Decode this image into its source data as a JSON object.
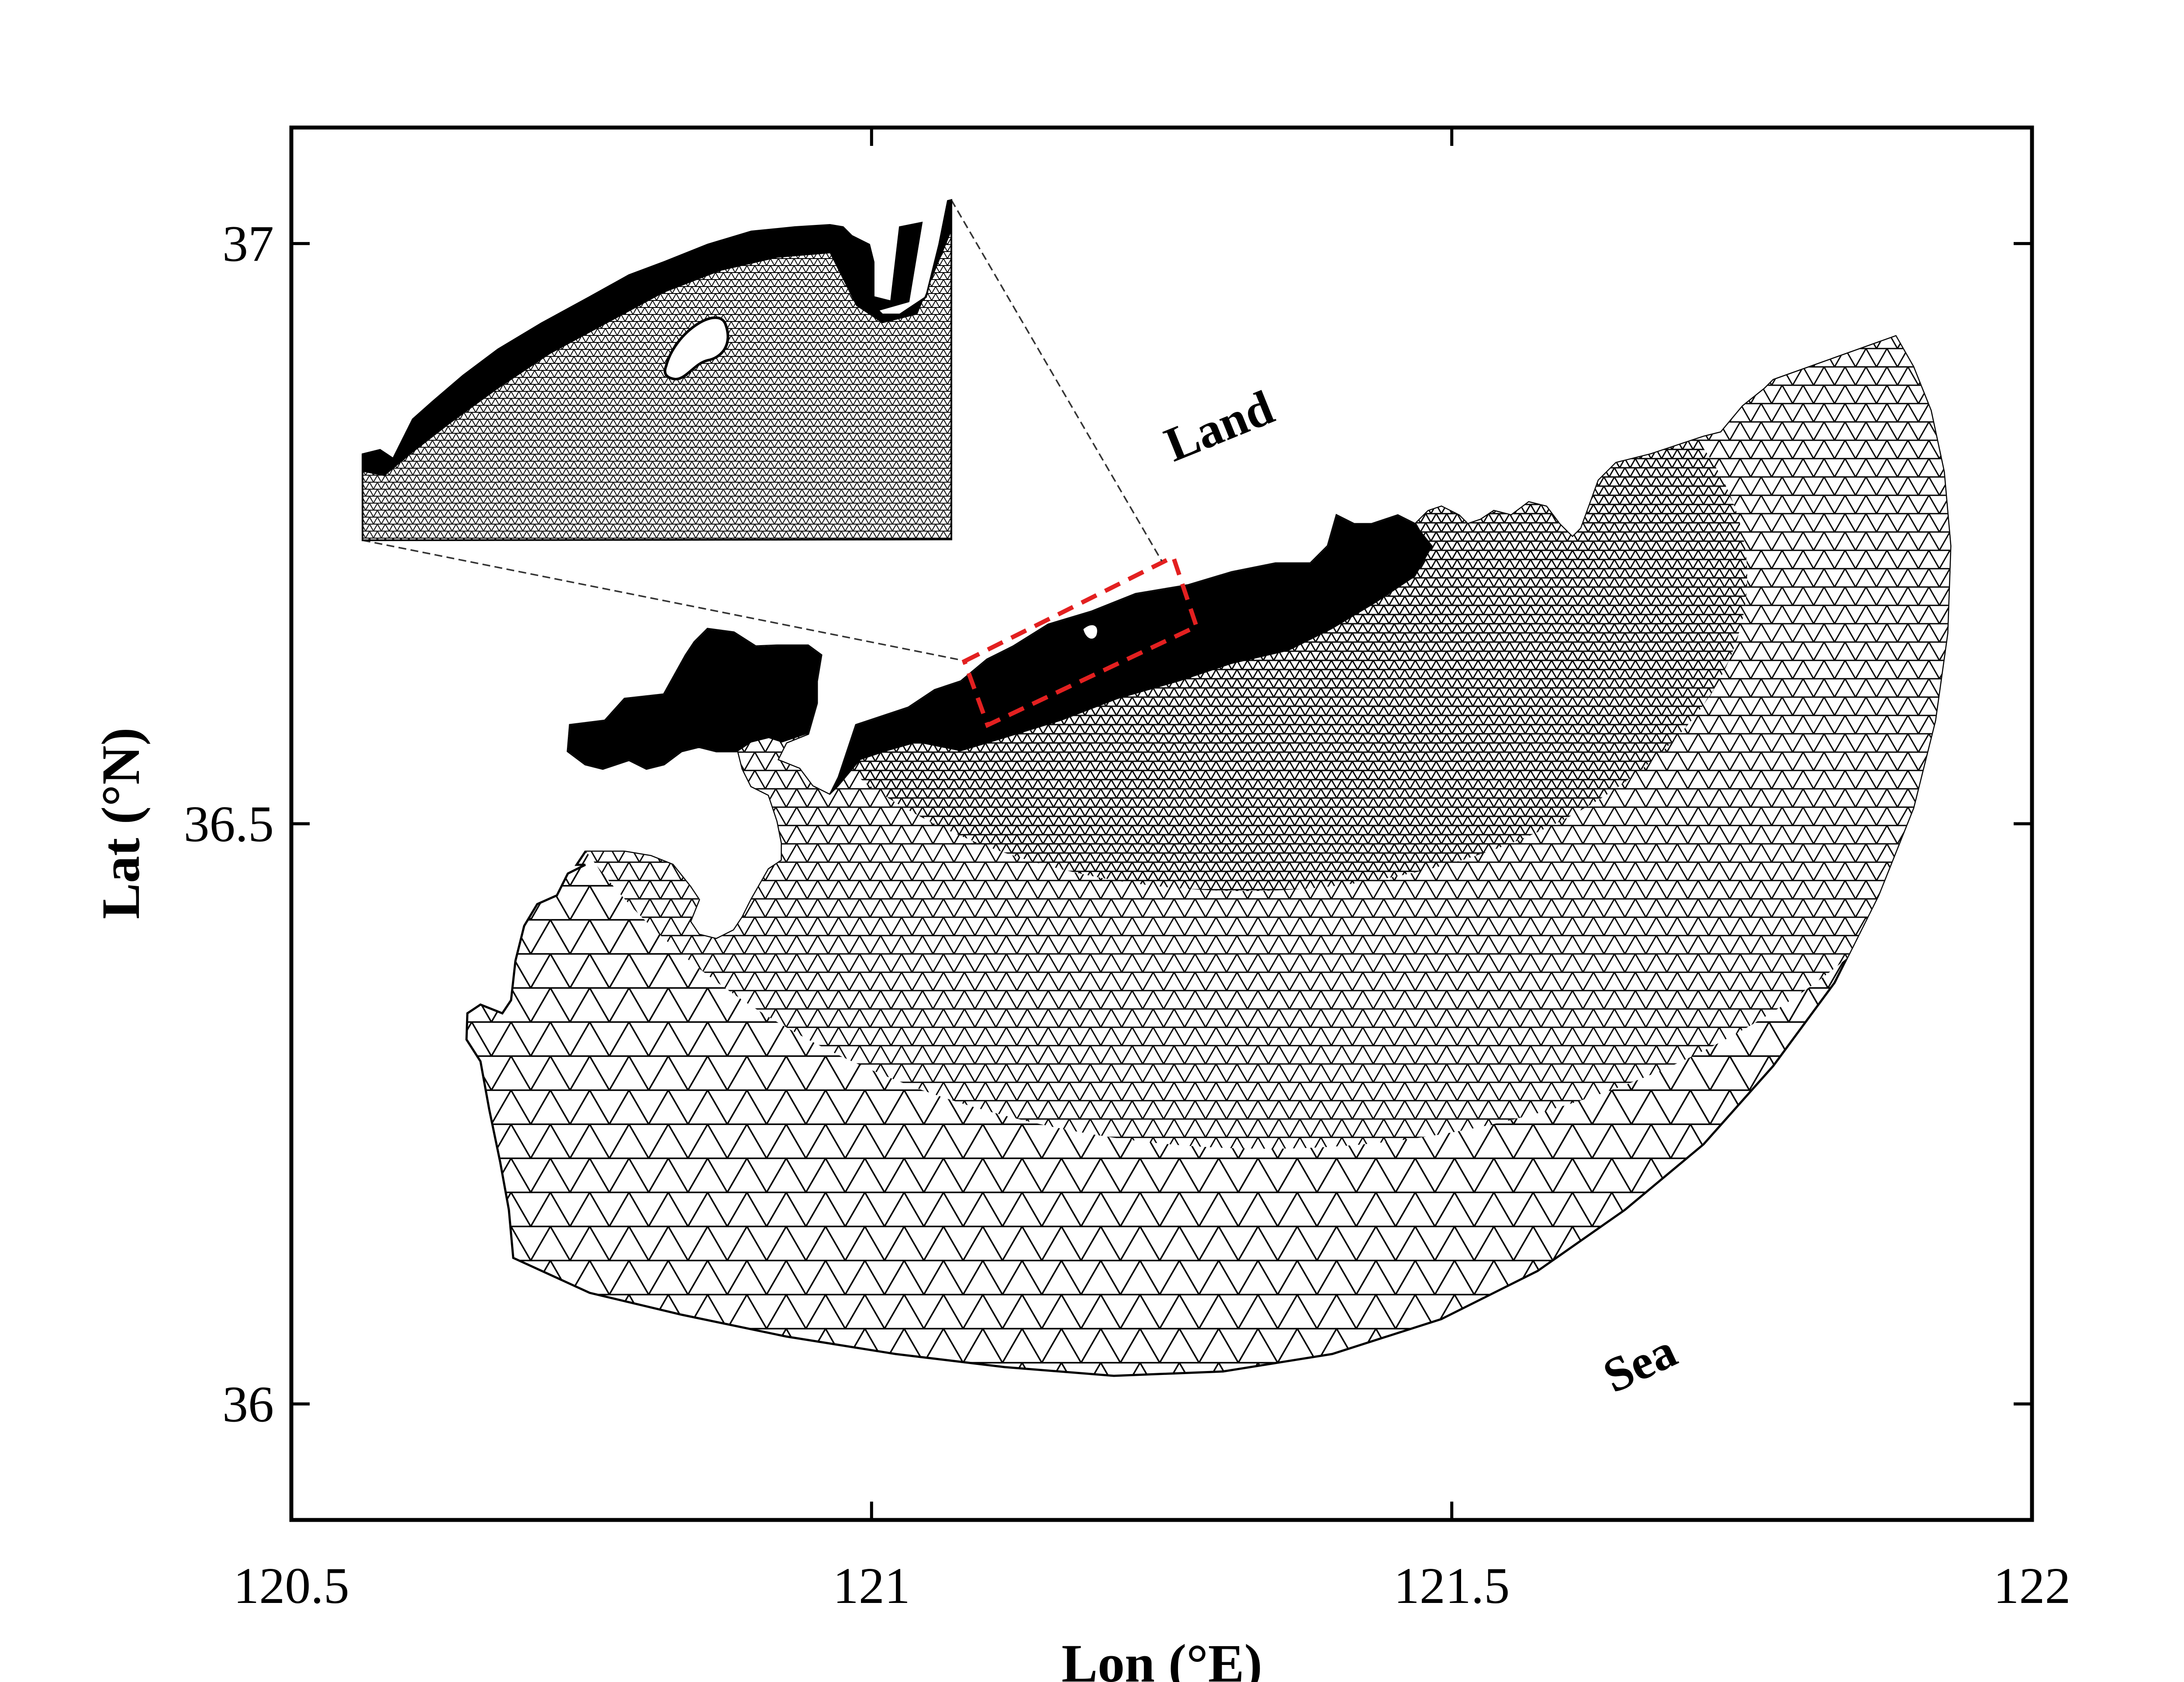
{
  "figure": {
    "xaxis": {
      "title": "Lon (°E)",
      "range": [
        120.5,
        122
      ],
      "ticks": [
        {
          "value": 120.5,
          "label": "120.5"
        },
        {
          "value": 121,
          "label": "121"
        },
        {
          "value": 121.5,
          "label": "121.5"
        },
        {
          "value": 122,
          "label": "122"
        }
      ]
    },
    "yaxis": {
      "title": "Lat (°N)",
      "range": [
        35.9,
        37.1
      ],
      "ticks": [
        {
          "value": 36,
          "label": "36"
        },
        {
          "value": 36.5,
          "label": "36.5"
        },
        {
          "value": 37,
          "label": "37"
        }
      ]
    },
    "labels": {
      "land": "Land",
      "sea": "Sea"
    },
    "zoom_box": {
      "corners_lonlat": [
        [
          121.08,
          36.64
        ],
        [
          121.26,
          36.73
        ],
        [
          121.28,
          36.67
        ],
        [
          121.1,
          36.585
        ]
      ],
      "color": "#e32020",
      "style": "dashed"
    },
    "inset": {
      "description_visible": false,
      "source": "zoom_box"
    },
    "colors": {
      "mesh": "#000000",
      "background": "#ffffff",
      "highlight": "#e32020"
    }
  }
}
